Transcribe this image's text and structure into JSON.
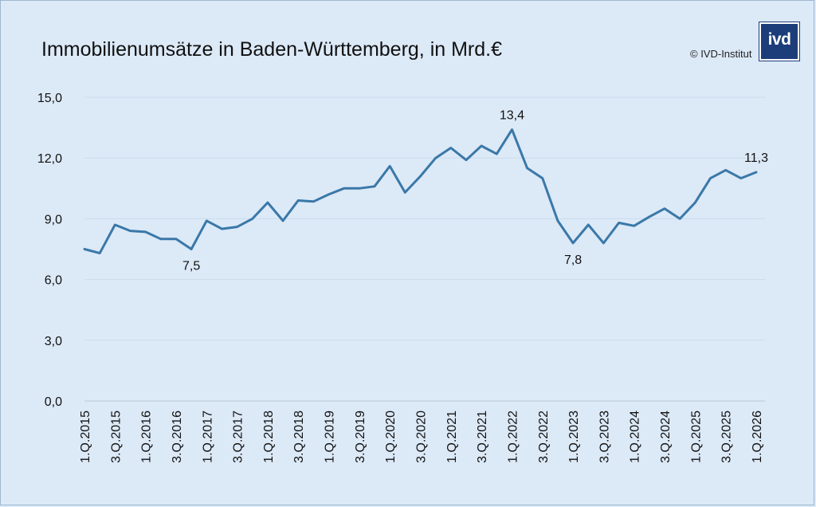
{
  "title": "Immobilienumsätze in Baden-Württemberg, in Mrd.€",
  "copyright": "© IVD-Institut",
  "logo_text": "ivd",
  "colors": {
    "line": "#3a78a8",
    "background": "#dce9f7",
    "grid": "#c9dced"
  },
  "chart_data": {
    "type": "line",
    "title": "Immobilienumsätze in Baden-Württemberg, in Mrd.€",
    "xlabel": "",
    "ylabel": "",
    "ylim": [
      0,
      15
    ],
    "yticks": [
      "0,0",
      "3,0",
      "6,0",
      "9,0",
      "12,0",
      "15,0"
    ],
    "grid": true,
    "x": [
      "1.Q.2015",
      "2.Q.2015",
      "3.Q.2015",
      "4.Q.2015",
      "1.Q.2016",
      "2.Q.2016",
      "3.Q.2016",
      "4.Q.2016",
      "1.Q.2017",
      "2.Q.2017",
      "3.Q.2017",
      "4.Q.2017",
      "1.Q.2018",
      "2.Q.2018",
      "3.Q.2018",
      "4.Q.2018",
      "1.Q.2019",
      "2.Q.2019",
      "3.Q.2019",
      "4.Q.2019",
      "1.Q.2020",
      "2.Q.2020",
      "3.Q.2020",
      "4.Q.2020",
      "1.Q.2021",
      "2.Q.2021",
      "3.Q.2021",
      "4.Q.2021",
      "1.Q.2022",
      "2.Q.2022",
      "3.Q.2022",
      "4.Q.2022",
      "1.Q.2023",
      "2.Q.2023",
      "3.Q.2023",
      "4.Q.2023",
      "1.Q.2024",
      "2.Q.2024",
      "3.Q.2024",
      "4.Q.2024",
      "1.Q.2025",
      "2.Q.2025",
      "3.Q.2025",
      "4.Q.2025",
      "1.Q.2026"
    ],
    "xtick_labels": [
      "1.Q.2015",
      "3.Q.2015",
      "1.Q.2016",
      "3.Q.2016",
      "1.Q.2017",
      "3.Q.2017",
      "1.Q.2018",
      "3.Q.2018",
      "1.Q.2019",
      "3.Q.2019",
      "1.Q.2020",
      "3.Q.2020",
      "1.Q.2021",
      "3.Q.2021",
      "1.Q.2022",
      "3.Q.2022",
      "1.Q.2023",
      "3.Q.2023",
      "1.Q.2024",
      "3.Q.2024",
      "1.Q.2025",
      "3.Q.2025",
      "1.Q.2026"
    ],
    "series": [
      {
        "values": [
          7.5,
          7.3,
          8.7,
          8.4,
          8.35,
          8.0,
          8.0,
          7.5,
          8.9,
          8.5,
          8.6,
          9.0,
          9.8,
          8.9,
          9.9,
          9.85,
          10.2,
          10.5,
          10.5,
          10.6,
          11.6,
          10.3,
          11.1,
          12.0,
          12.5,
          11.9,
          12.6,
          12.2,
          13.4,
          11.5,
          11.0,
          8.9,
          7.8,
          8.7,
          7.8,
          8.8,
          8.65,
          9.1,
          9.5,
          9.0,
          9.8,
          11.0,
          11.4,
          11.0,
          11.3
        ]
      }
    ],
    "annotations": [
      {
        "index": 7,
        "text": "7,5",
        "position": "below"
      },
      {
        "index": 28,
        "text": "13,4",
        "position": "above"
      },
      {
        "index": 32,
        "text": "7,8",
        "position": "below"
      },
      {
        "index": 44,
        "text": "11,3",
        "position": "above"
      }
    ]
  }
}
